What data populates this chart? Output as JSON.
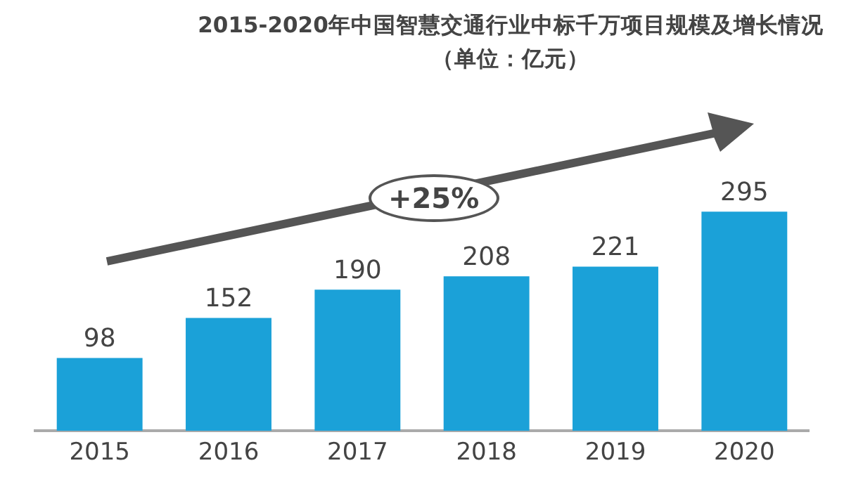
{
  "chart_data": {
    "type": "bar",
    "title": "2015-2020年中国智慧交通行业中标千万项目规模及增长情况（单位：亿元）",
    "categories": [
      "2015",
      "2016",
      "2017",
      "2018",
      "2019",
      "2020"
    ],
    "values": [
      98,
      152,
      190,
      208,
      221,
      295
    ],
    "color": "#1ba1d8",
    "data_labels": true,
    "annotations": [
      "+25%"
    ]
  }
}
